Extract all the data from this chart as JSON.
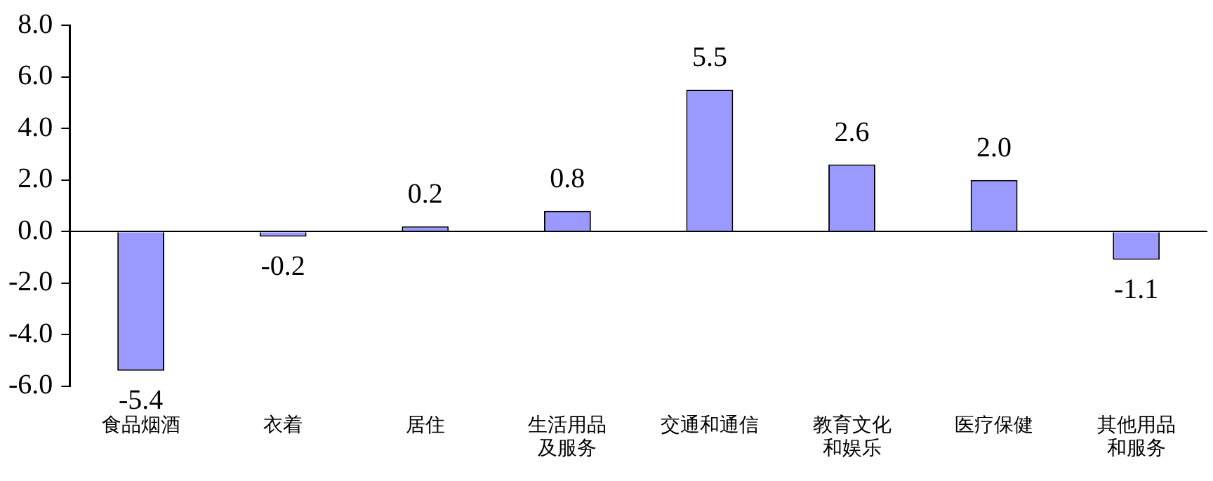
{
  "chart_data": {
    "type": "bar",
    "categories": [
      "食品烟酒",
      "衣着",
      "居住",
      "生活用品及服务",
      "交通和通信",
      "教育文化和娱乐",
      "医疗保健",
      "其他用品和服务"
    ],
    "values": [
      -5.4,
      -0.2,
      0.2,
      0.8,
      5.5,
      2.6,
      2.0,
      -1.1
    ],
    "color": "#9999ff",
    "ylim": [
      -6,
      8
    ],
    "yticks": [
      {
        "value": -6,
        "label": "-6.0"
      },
      {
        "value": -4,
        "label": "-4.0"
      },
      {
        "value": -2,
        "label": "-2.0"
      },
      {
        "value": 0,
        "label": "0.0"
      },
      {
        "value": 2,
        "label": "2.0"
      },
      {
        "value": 4,
        "label": "4.0"
      },
      {
        "value": 6,
        "label": "6.0"
      },
      {
        "value": 8,
        "label": "8.0"
      }
    ],
    "data_labels": true,
    "value_labels": [
      "-5.4",
      "-0.2",
      "0.2",
      "0.8",
      "5.5",
      "2.6",
      "2.0",
      "-1.1"
    ],
    "legend": false
  }
}
